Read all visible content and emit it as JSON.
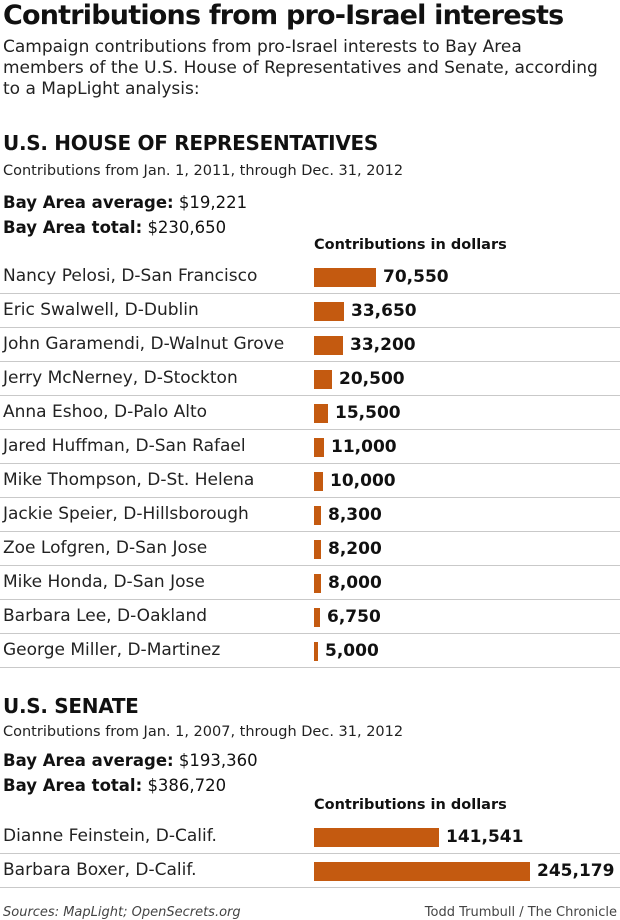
{
  "title": "Contributions from pro-Israel interests",
  "intro": "Campaign contributions from pro-Israel interests to Bay Area members of the U.S. House of Representatives and Senate, according to a MapLight analysis:",
  "bar_color": "#c45a10",
  "house": {
    "heading": "U.S. HOUSE OF REPRESENTATIVES",
    "period": "Contributions from Jan. 1, 2011, through Dec. 31, 2012",
    "average_label": "Bay Area average:",
    "average_value": "$19,221",
    "total_label": "Bay Area total:",
    "total_value": "$230,650",
    "column_header": "Contributions in dollars"
  },
  "senate": {
    "heading": "U.S. SENATE",
    "period": "Contributions from Jan. 1, 2007, through Dec. 31, 2012",
    "average_label": "Bay Area average:",
    "average_value": "$193,360",
    "total_label": "Bay Area total:",
    "total_value": "$386,720",
    "column_header": "Contributions in dollars"
  },
  "chart_data": [
    {
      "type": "bar",
      "title": "U.S. HOUSE OF REPRESENTATIVES",
      "categories": [
        "Nancy Pelosi, D-San Francisco",
        "Eric Swalwell, D-Dublin",
        "John Garamendi, D-Walnut Grove",
        "Jerry McNerney, D-Stockton",
        "Anna Eshoo, D-Palo Alto",
        "Jared Huffman, D-San Rafael",
        "Mike Thompson, D-St. Helena",
        "Jackie Speier, D-Hillsborough",
        "Zoe Lofgren, D-San Jose",
        "Mike Honda, D-San Jose",
        "Barbara Lee, D-Oakland",
        "George Miller, D-Martinez"
      ],
      "values": [
        70550,
        33650,
        33200,
        20500,
        15500,
        11000,
        10000,
        8300,
        8200,
        8000,
        6750,
        5000
      ],
      "value_labels": [
        "70,550",
        "33,650",
        "33,200",
        "20,500",
        "15,500",
        "11,000",
        "10,000",
        "8,300",
        "8,200",
        "8,000",
        "6,750",
        "5,000"
      ],
      "xlabel": "Contributions in dollars",
      "ylabel": "",
      "orientation": "horizontal"
    },
    {
      "type": "bar",
      "title": "U.S. SENATE",
      "categories": [
        "Dianne Feinstein, D-Calif.",
        "Barbara Boxer, D-Calif."
      ],
      "values": [
        141541,
        245179
      ],
      "value_labels": [
        "141,541",
        "245,179"
      ],
      "xlabel": "Contributions in dollars",
      "ylabel": "",
      "orientation": "horizontal"
    }
  ],
  "footer": {
    "sources": "Sources: MapLight; OpenSecrets.org",
    "credit": "Todd Trumbull / The Chronicle"
  }
}
